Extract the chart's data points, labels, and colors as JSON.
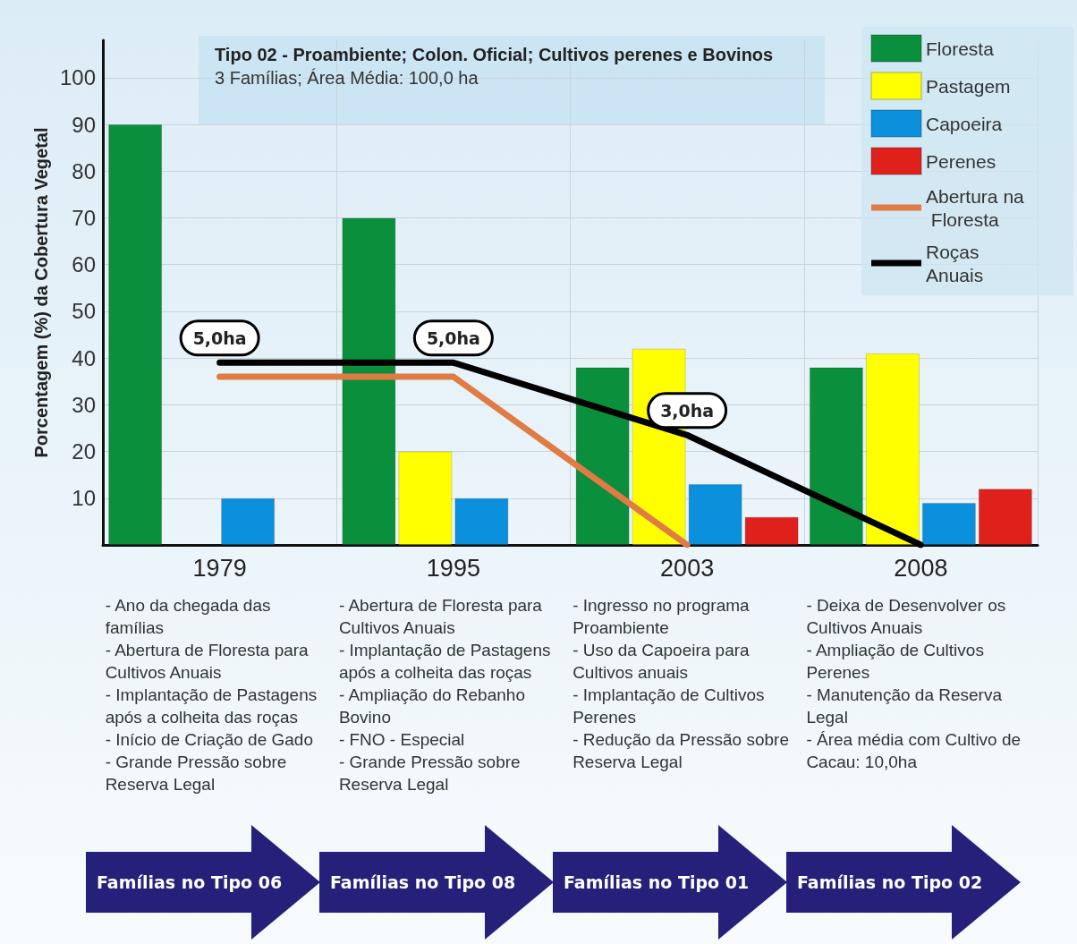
{
  "chart_data": {
    "type": "bar",
    "title": "Tipo 02 - Proambiente; Colon. Oficial; Cultivos perenes e Bovinos",
    "subtitle": "3 Famílias; Área Média: 100,0 ha",
    "ylabel": "Porcentagem (%) da Cobertura Vegetal",
    "categories": [
      "1979",
      "1995",
      "2003",
      "2008"
    ],
    "series": [
      {
        "name": "Floresta",
        "color": "#0a8f3c",
        "values": [
          90,
          70,
          38,
          38
        ]
      },
      {
        "name": "Pastagem",
        "color": "#ffff00",
        "values": [
          null,
          20,
          42,
          41
        ]
      },
      {
        "name": "Capoeira",
        "color": "#0a90dc",
        "values": [
          10,
          10,
          13,
          9
        ]
      },
      {
        "name": "Perenes",
        "color": "#e0201b",
        "values": [
          null,
          null,
          6,
          12
        ]
      },
      {
        "name": "Abertura na Floresta",
        "type": "line",
        "color": "#e07b45",
        "values": [
          36,
          36,
          0,
          null
        ]
      },
      {
        "name": "Roças Anuais",
        "type": "line",
        "color": "#000000",
        "values": [
          39,
          39,
          23.5,
          0
        ]
      }
    ],
    "ylim": [
      0,
      108
    ],
    "yticks": [
      {
        "value": 0,
        "label": null
      },
      10,
      20,
      30,
      40,
      50,
      60,
      70,
      80,
      90,
      100
    ],
    "grid": true,
    "legend": "top right",
    "marker": "none",
    "line_style": "solid",
    "annotations": [
      {
        "text": "5,0ha",
        "x": "1979",
        "y": 39
      },
      {
        "text": "5,0ha",
        "x": "1995",
        "y": 39
      },
      {
        "text": "3,0ha",
        "x": "2003",
        "y": 23.5
      },
      "- Ano da chegada das famílias\n- Abertura de Floresta para Cultivos Anuais\n- Implantação de Pastagens após a colheita das roças\n- Início de Criação de Gado\n- Grande Pressão sobre Reserva Legal",
      "Famílias no Tipo 06",
      "- Abertura de Floresta para Cultivos Anuais\n- Implantação de Pastagens após a colheita das roças\n- Ampliação do Rebanho Bovino\n- FNO - Especial\n- Grande Pressão sobre Reserva Legal",
      "Famílias no Tipo 08",
      "- Ingresso no programa Proambiente\n- Uso da Capoeira para Cultivos anuais\n- Implantação de Cultivos Perenes\n- Redução da Pressão sobre Reserva Legal",
      "Famílias no Tipo 01",
      "- Deixa de Desenvolver os Cultivos Anuais\n- Ampliação de Cultivos Perenes\n- Manutenção da Reserva Legal\n- Área média com Cultivo de Cacau: 10,0ha",
      "Famílias no Tipo 02"
    ]
  }
}
